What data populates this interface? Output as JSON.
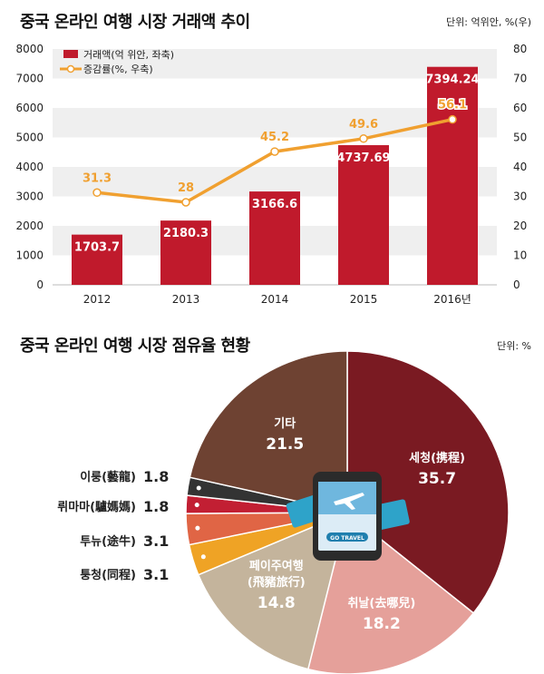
{
  "chart_data": [
    {
      "type": "bar",
      "title": "중국 온라인 여행 시장 거래액 추이",
      "unit_note": "단위: 억위안, %(우)",
      "categories": [
        "2012",
        "2013",
        "2014",
        "2015",
        "2016년"
      ],
      "series": [
        {
          "name": "거래액(억 위안, 좌축)",
          "type": "bar",
          "axis": "left",
          "values": [
            1703.7,
            2180.3,
            3166.6,
            4737.69,
            7394.24
          ],
          "value_labels": [
            "1703.7",
            "2180.3",
            "3166.6",
            "4737.69",
            "7394.24"
          ],
          "color": "#c01a2c"
        },
        {
          "name": "증감률(%, 우축)",
          "type": "line",
          "axis": "right",
          "values": [
            31.3,
            28,
            45.2,
            49.6,
            56.1
          ],
          "value_labels": [
            "31.3",
            "28",
            "45.2",
            "49.6",
            "56.1"
          ],
          "color": "#f0a030"
        }
      ],
      "ylim": [
        0,
        8000
      ],
      "ylim_right": [
        0,
        80
      ],
      "yticks": [
        "0",
        "1000",
        "2000",
        "3000",
        "4000",
        "5000",
        "6000",
        "7000",
        "8000"
      ],
      "yticks_right": [
        "0",
        "10",
        "20",
        "30",
        "40",
        "50",
        "60",
        "70",
        "80"
      ],
      "grid": "alternating horizontal bands",
      "legend": "top-left"
    },
    {
      "type": "pie",
      "title": "중국 온라인 여행 시장 점유율 현황",
      "unit_note": "단위: %",
      "slices": [
        {
          "label": "세청(携程)",
          "value": 35.7,
          "value_label": "35.7",
          "color": "#7a1a22"
        },
        {
          "label": "취날(去哪兒)",
          "value": 18.2,
          "value_label": "18.2",
          "color": "#e5a09a"
        },
        {
          "label": "페이주여행(飛豬旅行)",
          "value": 14.8,
          "value_label": "14.8",
          "color": "#c4b49c"
        },
        {
          "label": "퉁청(同程)",
          "value": 3.1,
          "value_label": "3.1",
          "color": "#efa325"
        },
        {
          "label": "투뉴(途牛)",
          "value": 3.1,
          "value_label": "3.1",
          "color": "#e06545"
        },
        {
          "label": "뤼마마(驢媽媽)",
          "value": 1.8,
          "value_label": "1.8",
          "color": "#c21f33"
        },
        {
          "label": "이룽(藝龍)",
          "value": 1.8,
          "value_label": "1.8",
          "color": "#333333"
        },
        {
          "label": "기타",
          "value": 21.5,
          "value_label": "21.5",
          "color": "#6e4232"
        }
      ],
      "center_illustration": "smartphone with GO TRAVEL screen and plane tickets",
      "illustration_text": "GO TRAVEL"
    }
  ]
}
